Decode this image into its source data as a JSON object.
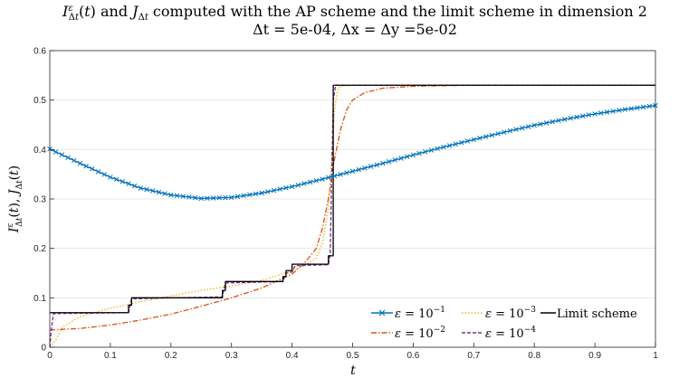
{
  "chart_data": {
    "type": "line",
    "title": "I^ε_Δt(t) and J_Δt computed with the AP scheme and the limit scheme in dimension 2",
    "subtitle": "Δt = 5e-04, Δx = Δy =5e-02",
    "xlabel": "t",
    "ylabel": "I^ε_Δt(t), J_Δt(t)",
    "xlim": [
      0,
      1
    ],
    "ylim": [
      0,
      0.6
    ],
    "xticks": [
      "0",
      "0.1",
      "0.2",
      "0.3",
      "0.4",
      "0.5",
      "0.6",
      "0.7",
      "0.8",
      "0.9",
      "1"
    ],
    "yticks": [
      "0",
      "0.1",
      "0.2",
      "0.3",
      "0.4",
      "0.5",
      "0.6"
    ],
    "grid": "horizontal",
    "legend_position": "bottom-right",
    "series": [
      {
        "name": "ε = 10^-1",
        "color": "#0072BD",
        "style": "solid-x-markers",
        "x": [
          0,
          0.05,
          0.1,
          0.15,
          0.2,
          0.25,
          0.3,
          0.35,
          0.4,
          0.45,
          0.5,
          0.55,
          0.6,
          0.65,
          0.7,
          0.75,
          0.8,
          0.85,
          0.9,
          0.95,
          1.0
        ],
        "y": [
          0.401,
          0.372,
          0.344,
          0.322,
          0.308,
          0.301,
          0.303,
          0.312,
          0.325,
          0.34,
          0.356,
          0.372,
          0.389,
          0.405,
          0.42,
          0.435,
          0.449,
          0.461,
          0.472,
          0.481,
          0.489
        ]
      },
      {
        "name": "ε = 10^-2",
        "color": "#D95319",
        "style": "dash-dot",
        "x": [
          0,
          0.05,
          0.1,
          0.15,
          0.2,
          0.25,
          0.3,
          0.35,
          0.4,
          0.42,
          0.44,
          0.45,
          0.46,
          0.47,
          0.48,
          0.49,
          0.5,
          0.52,
          0.55,
          0.6,
          0.7,
          0.8,
          1.0
        ],
        "y": [
          0.035,
          0.038,
          0.045,
          0.055,
          0.067,
          0.083,
          0.1,
          0.12,
          0.148,
          0.17,
          0.2,
          0.24,
          0.3,
          0.38,
          0.44,
          0.48,
          0.5,
          0.515,
          0.524,
          0.528,
          0.53,
          0.53,
          0.53
        ]
      },
      {
        "name": "ε = 10^-3",
        "color": "#EDB120",
        "style": "dotted",
        "x": [
          0,
          0.01,
          0.02,
          0.05,
          0.1,
          0.15,
          0.2,
          0.25,
          0.3,
          0.35,
          0.4,
          0.42,
          0.44,
          0.45,
          0.46,
          0.465,
          0.47,
          0.475,
          0.48,
          0.5,
          1.0
        ],
        "y": [
          0,
          0.015,
          0.04,
          0.062,
          0.079,
          0.092,
          0.104,
          0.115,
          0.124,
          0.135,
          0.155,
          0.165,
          0.18,
          0.21,
          0.28,
          0.38,
          0.48,
          0.52,
          0.528,
          0.53,
          0.53
        ]
      },
      {
        "name": "ε = 10^-4",
        "color": "#7E2F8E",
        "style": "dashed",
        "x": [
          0,
          0.003,
          0.006,
          0.13,
          0.135,
          0.285,
          0.29,
          0.385,
          0.39,
          0.4,
          0.405,
          0.46,
          0.463,
          0.468,
          0.472,
          1.0
        ],
        "y": [
          0.0,
          0.04,
          0.068,
          0.07,
          0.098,
          0.102,
          0.13,
          0.133,
          0.15,
          0.152,
          0.165,
          0.167,
          0.19,
          0.5,
          0.53,
          0.53
        ]
      },
      {
        "name": "Limit scheme",
        "color": "#000000",
        "style": "step",
        "x": [
          0,
          0.13,
          0.13,
          0.135,
          0.135,
          0.285,
          0.285,
          0.29,
          0.29,
          0.385,
          0.385,
          0.39,
          0.39,
          0.4,
          0.4,
          0.46,
          0.46,
          0.468,
          0.468,
          1.0
        ],
        "y": [
          0.07,
          0.07,
          0.085,
          0.085,
          0.1,
          0.1,
          0.115,
          0.115,
          0.133,
          0.133,
          0.143,
          0.143,
          0.155,
          0.155,
          0.168,
          0.168,
          0.185,
          0.185,
          0.53,
          0.53
        ]
      }
    ],
    "legend": {
      "row1": [
        "ε = 10^-1",
        "ε = 10^-3",
        "Limit scheme"
      ],
      "row2": [
        "ε = 10^-2",
        "ε = 10^-4"
      ]
    }
  }
}
